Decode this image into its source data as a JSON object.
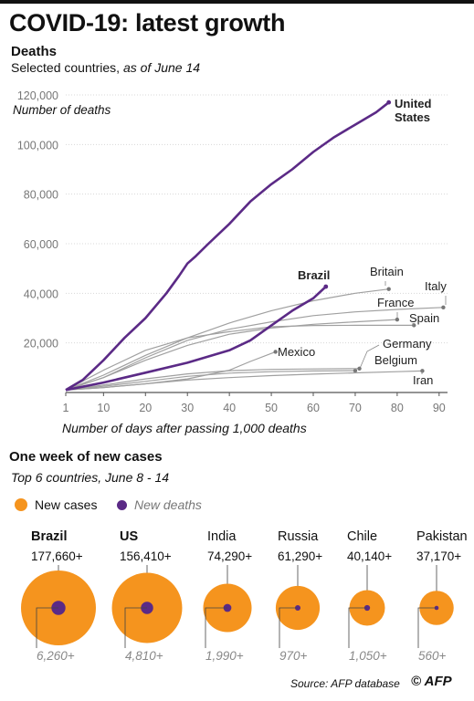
{
  "title": "COVID-19: latest growth",
  "chart_data": [
    {
      "type": "line",
      "title": "Deaths",
      "subtitle_plain": "Selected countries, ",
      "subtitle_italic": "as of June 14",
      "ylabel": "Number of deaths",
      "xlabel": "Number of days after passing 1,000 deaths",
      "xlim": [
        1,
        92
      ],
      "ylim": [
        0,
        120000
      ],
      "x_ticks": [
        "1",
        "10",
        "20",
        "30",
        "40",
        "50",
        "60",
        "70",
        "80",
        "90"
      ],
      "x_tick_values": [
        1,
        10,
        20,
        30,
        40,
        50,
        60,
        70,
        80,
        90
      ],
      "y_ticks": [
        "120,000",
        "100,000",
        "80,000",
        "60,000",
        "40,000",
        "20,000"
      ],
      "y_tick_values": [
        120000,
        100000,
        80000,
        60000,
        40000,
        20000
      ],
      "series": [
        {
          "name": "United States",
          "label_lines": [
            "United",
            "States"
          ],
          "highlight": true,
          "x": [
            1,
            5,
            10,
            15,
            20,
            25,
            28,
            30,
            32,
            35,
            40,
            45,
            50,
            55,
            60,
            65,
            70,
            75,
            78
          ],
          "y": [
            1000,
            5000,
            13000,
            22000,
            30000,
            40000,
            47000,
            52000,
            55000,
            60000,
            68000,
            77000,
            84000,
            90000,
            97000,
            103000,
            108000,
            113000,
            117000
          ]
        },
        {
          "name": "Brazil",
          "label_lines": [
            "Brazil"
          ],
          "highlight": true,
          "x": [
            1,
            10,
            20,
            30,
            40,
            45,
            50,
            55,
            60,
            63
          ],
          "y": [
            1000,
            4000,
            8000,
            12000,
            17000,
            21000,
            27000,
            33000,
            38000,
            42700
          ]
        },
        {
          "name": "Britain",
          "label_lines": [
            "Britain"
          ],
          "highlight": false,
          "x": [
            1,
            10,
            20,
            30,
            40,
            50,
            60,
            70,
            78
          ],
          "y": [
            1000,
            7000,
            15000,
            22000,
            28000,
            33000,
            37000,
            40000,
            41700
          ]
        },
        {
          "name": "Italy",
          "label_lines": [
            "Italy"
          ],
          "highlight": false,
          "x": [
            1,
            10,
            20,
            30,
            40,
            50,
            60,
            70,
            80,
            91
          ],
          "y": [
            1000,
            6000,
            14000,
            21000,
            25500,
            28500,
            31000,
            32500,
            33500,
            34300
          ]
        },
        {
          "name": "France",
          "label_lines": [
            "France"
          ],
          "highlight": false,
          "x": [
            1,
            10,
            20,
            30,
            40,
            50,
            60,
            70,
            80
          ],
          "y": [
            1000,
            6000,
            13000,
            19000,
            23500,
            26000,
            27500,
            28500,
            29400
          ]
        },
        {
          "name": "Spain",
          "label_lines": [
            "Spain"
          ],
          "highlight": false,
          "x": [
            1,
            10,
            20,
            30,
            40,
            50,
            60,
            70,
            84
          ],
          "y": [
            1000,
            9000,
            17000,
            22000,
            24500,
            26500,
            27000,
            27100,
            27100
          ]
        },
        {
          "name": "Mexico",
          "label_lines": [
            "Mexico"
          ],
          "highlight": false,
          "x": [
            1,
            10,
            20,
            30,
            40,
            45,
            51
          ],
          "y": [
            1000,
            2000,
            3500,
            5500,
            9000,
            12500,
            16400
          ]
        },
        {
          "name": "Germany",
          "label_lines": [
            "Germany"
          ],
          "highlight": false,
          "x": [
            1,
            10,
            20,
            30,
            40,
            50,
            60,
            70
          ],
          "y": [
            1000,
            2500,
            4500,
            6500,
            7800,
            8400,
            8700,
            8800
          ]
        },
        {
          "name": "Belgium",
          "label_lines": [
            "Belgium"
          ],
          "highlight": false,
          "x": [
            1,
            10,
            20,
            30,
            40,
            50,
            60,
            71
          ],
          "y": [
            1000,
            3000,
            5500,
            7500,
            8800,
            9300,
            9500,
            9650
          ]
        },
        {
          "name": "Iran",
          "label_lines": [
            "Iran"
          ],
          "highlight": false,
          "x": [
            1,
            10,
            20,
            30,
            40,
            50,
            60,
            70,
            80,
            86
          ],
          "y": [
            1000,
            2000,
            3500,
            5000,
            6000,
            6800,
            7400,
            7900,
            8400,
            8700
          ]
        }
      ]
    },
    {
      "type": "bubble",
      "title": "One week of new cases",
      "subtitle": "Top 6 countries, June 8 - 14",
      "legend": [
        {
          "name": "New cases",
          "color": "#f5941e"
        },
        {
          "name": "New deaths",
          "color": "#5b2a86"
        }
      ],
      "countries": [
        {
          "name": "Brazil",
          "bold": true,
          "cases": 177660,
          "cases_label": "177,660+",
          "deaths": 6260,
          "deaths_label": "6,260+"
        },
        {
          "name": "US",
          "bold": true,
          "cases": 156410,
          "cases_label": "156,410+",
          "deaths": 4810,
          "deaths_label": "4,810+"
        },
        {
          "name": "India",
          "bold": false,
          "cases": 74290,
          "cases_label": "74,290+",
          "deaths": 1990,
          "deaths_label": "1,990+"
        },
        {
          "name": "Russia",
          "bold": false,
          "cases": 61290,
          "cases_label": "61,290+",
          "deaths": 970,
          "deaths_label": "970+"
        },
        {
          "name": "Chile",
          "bold": false,
          "cases": 40140,
          "cases_label": "40,140+",
          "deaths": 1050,
          "deaths_label": "1,050+"
        },
        {
          "name": "Pakistan",
          "bold": false,
          "cases": 37170,
          "cases_label": "37,170+",
          "deaths": 560,
          "deaths_label": "560+"
        }
      ]
    }
  ],
  "colors": {
    "highlight_line": "#5b2a86",
    "other_line": "#a0a0a0",
    "cases": "#f5941e",
    "deaths": "#5b2a86",
    "grid": "#d8d8d8",
    "tick_text": "#777777"
  },
  "footer": {
    "source": "Source: AFP database",
    "credit": "© AFP"
  }
}
